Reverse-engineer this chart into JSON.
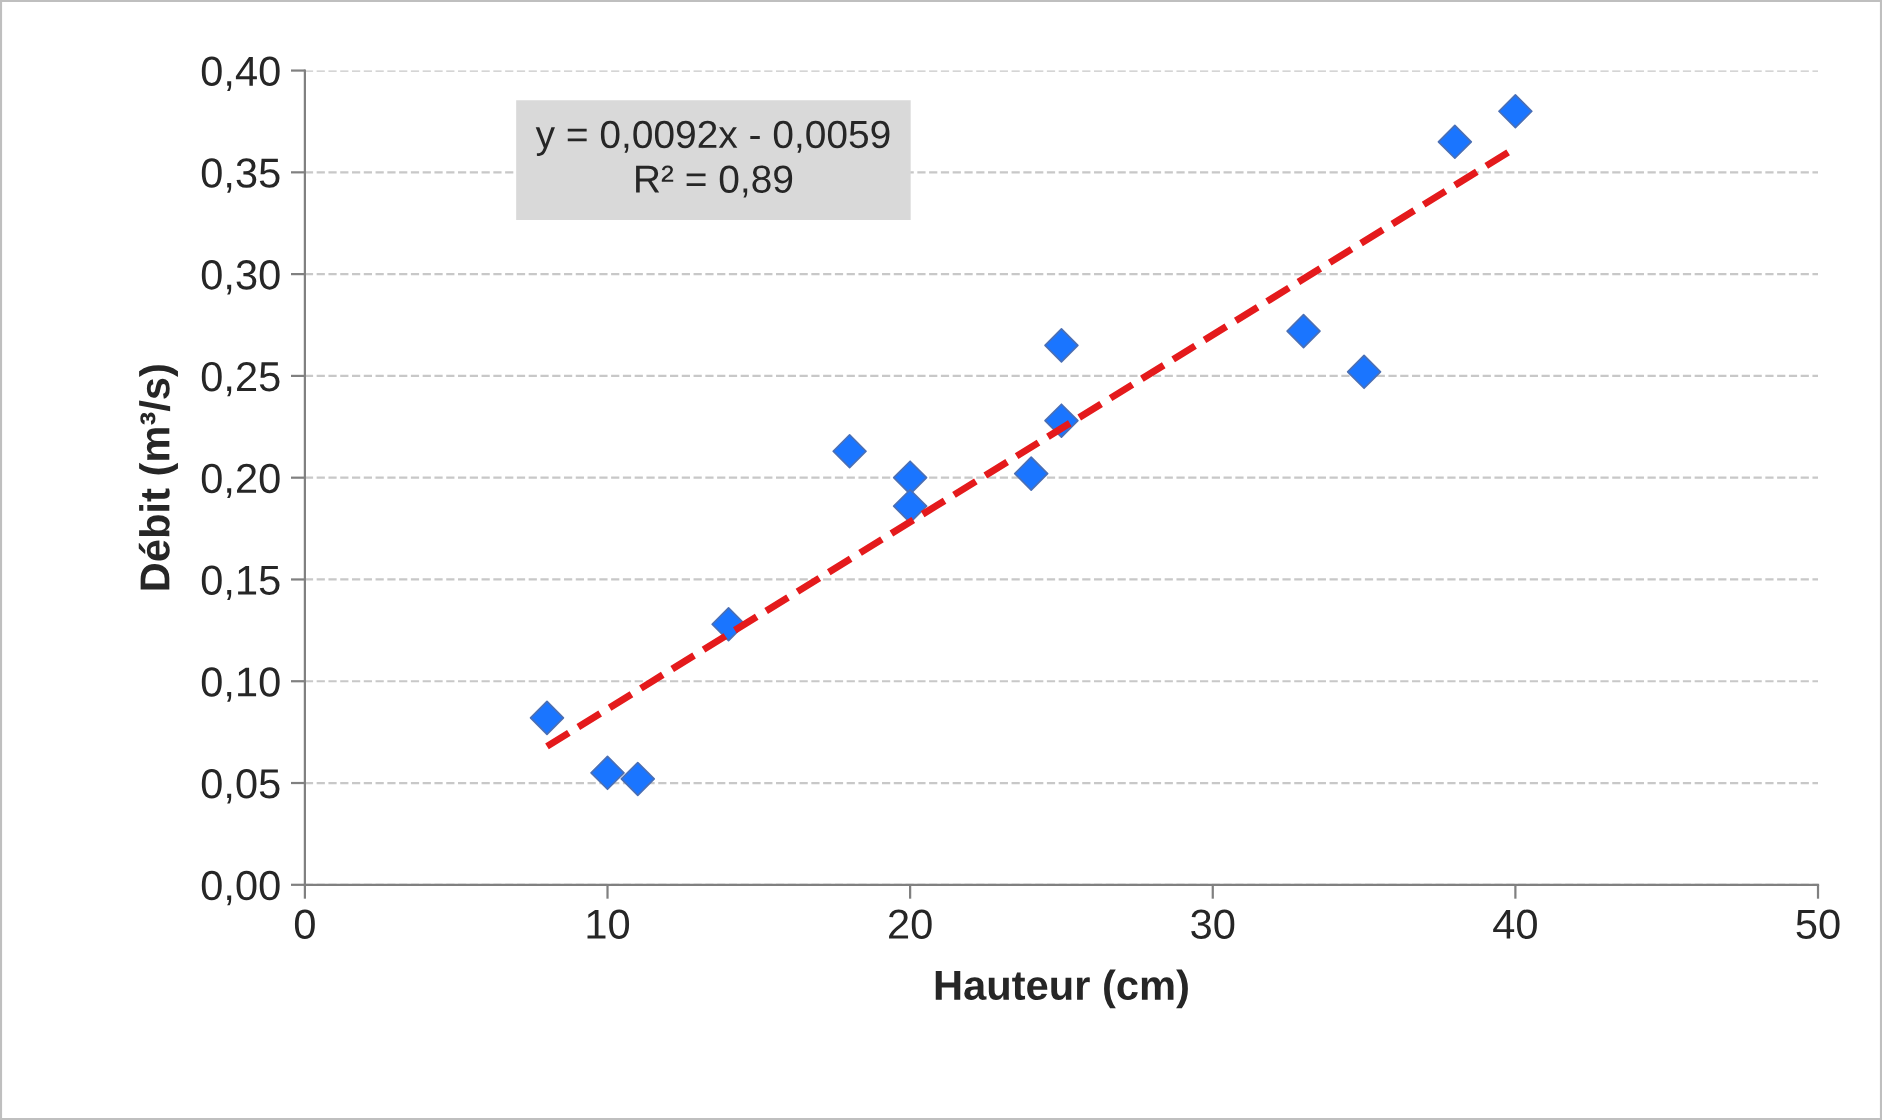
{
  "chart_data": {
    "type": "scatter",
    "xlabel": "Hauteur (cm)",
    "ylabel": "Débit (m³/s)",
    "annotations": [
      "y = 0,0092x - 0,0059\nR² = 0,89"
    ],
    "x": [
      8,
      10,
      11,
      14,
      18,
      20,
      20,
      24,
      25,
      25,
      33,
      35,
      38,
      40
    ],
    "series": [
      {
        "color": "#1a75ff",
        "marker": "diamond",
        "values": [
          0.082,
          0.055,
          0.052,
          0.128,
          0.213,
          0.2,
          0.186,
          0.202,
          0.228,
          0.265,
          0.272,
          0.252,
          0.365,
          0.38
        ]
      },
      {
        "type": "line",
        "color": "#e41a1c",
        "line_style": "dashed",
        "marker": "none",
        "x": [
          8,
          40
        ],
        "values": [
          0.068,
          0.362
        ]
      }
    ],
    "xlim": [
      0,
      50
    ],
    "xticks": [
      0,
      10,
      20,
      30,
      40,
      50
    ],
    "ylim": [
      0,
      0.4
    ],
    "yticks": [
      {
        "value": 0,
        "label": "0,00"
      },
      {
        "value": 0.05,
        "label": "0,05"
      },
      {
        "value": 0.1,
        "label": "0,10"
      },
      {
        "value": 0.15,
        "label": "0,15"
      },
      {
        "value": 0.2,
        "label": "0,20"
      },
      {
        "value": 0.25,
        "label": "0,25"
      },
      {
        "value": 0.3,
        "label": "0,30"
      },
      {
        "value": 0.35,
        "label": "0,35"
      },
      {
        "value": 0.4,
        "label": "0,40"
      }
    ],
    "grid": "y",
    "legend": false
  }
}
